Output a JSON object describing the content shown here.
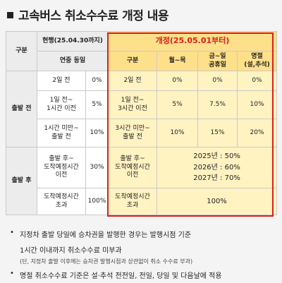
{
  "title": "고속버스 취소수수료 개정 내용",
  "table": {
    "col_group": "구분",
    "current_header": "현행(25.04.30까지)",
    "current_sub": "연중 동일",
    "new_header": "개정(25.05.01부터)",
    "new_cols": [
      "구분",
      "월~목",
      "금~일\n공휴일",
      "명절\n(설,추석)"
    ],
    "before_label": "출발 전",
    "after_label": "출발 후",
    "before_rows": [
      {
        "cur_label": "2일 전",
        "cur_fee": "0%",
        "new_label": "2일 전",
        "mon_thu": "0%",
        "fri_sun": "0%",
        "holiday": "0%"
      },
      {
        "cur_label": "1일 전~\n1시간 이전",
        "cur_fee": "5%",
        "new_label": "1일 전~\n3시간 이전",
        "mon_thu": "5%",
        "fri_sun": "7.5%",
        "holiday": "10%"
      },
      {
        "cur_label": "1시간 미만~\n출발 전",
        "cur_fee": "10%",
        "new_label": "3시간 미만~\n출발 전",
        "mon_thu": "10%",
        "fri_sun": "15%",
        "holiday": "20%"
      }
    ],
    "after_rows": [
      {
        "cur_label": "출발 후~\n도착예정시간\n이전",
        "cur_fee": "30%",
        "new_label": "출발 후~\n도착예정시간\n이전",
        "new_fee": "2025년 : 50%\n2026년 : 60%\n2027년 : 70%"
      },
      {
        "cur_label": "도착예정시간\n초과",
        "cur_fee": "100%",
        "new_label": "도착예정시간\n초과",
        "new_fee": "100%"
      }
    ]
  },
  "notes": {
    "bullet": "•",
    "note1": "지정차 출발 당일에 승차권을 발행한 경우는 발행시점 기준",
    "note1_cont": "1시간 이내까지 취소수수료 미부과",
    "note1_sub": "(단, 지정차 출발 이후에는 승차권 발행시점과 상관없이 취소 수수료 부과)",
    "note2": "명절 취소수수료 기준은 설·추석 전전일, 전일, 당일 및 다음날에 적용"
  }
}
